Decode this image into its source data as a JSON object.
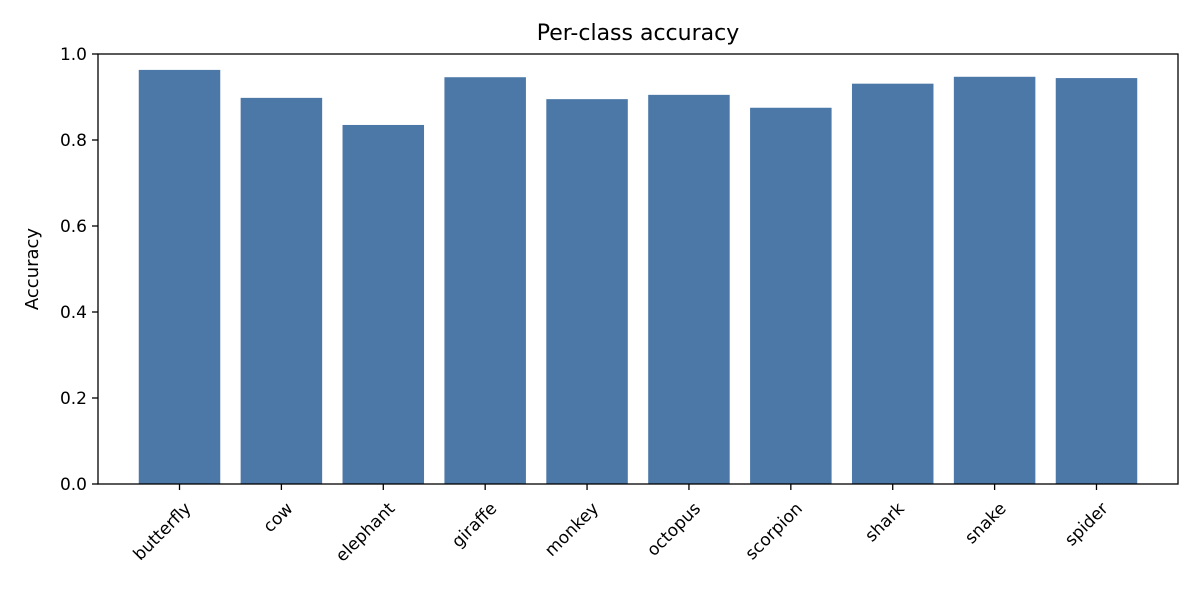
{
  "chart_data": {
    "type": "bar",
    "title": "Per-class accuracy",
    "xlabel": "",
    "ylabel": "Accuracy",
    "ylim": [
      0,
      1.0
    ],
    "yticks": [
      "0.0",
      "0.2",
      "0.4",
      "0.6",
      "0.8",
      "1.0"
    ],
    "grid": false,
    "bar_color": "#4c78a8",
    "categories": [
      "butterfly",
      "cow",
      "elephant",
      "giraffe",
      "monkey",
      "octopus",
      "scorpion",
      "shark",
      "snake",
      "spider"
    ],
    "values": [
      0.963,
      0.898,
      0.835,
      0.946,
      0.895,
      0.905,
      0.875,
      0.931,
      0.947,
      0.944
    ]
  }
}
